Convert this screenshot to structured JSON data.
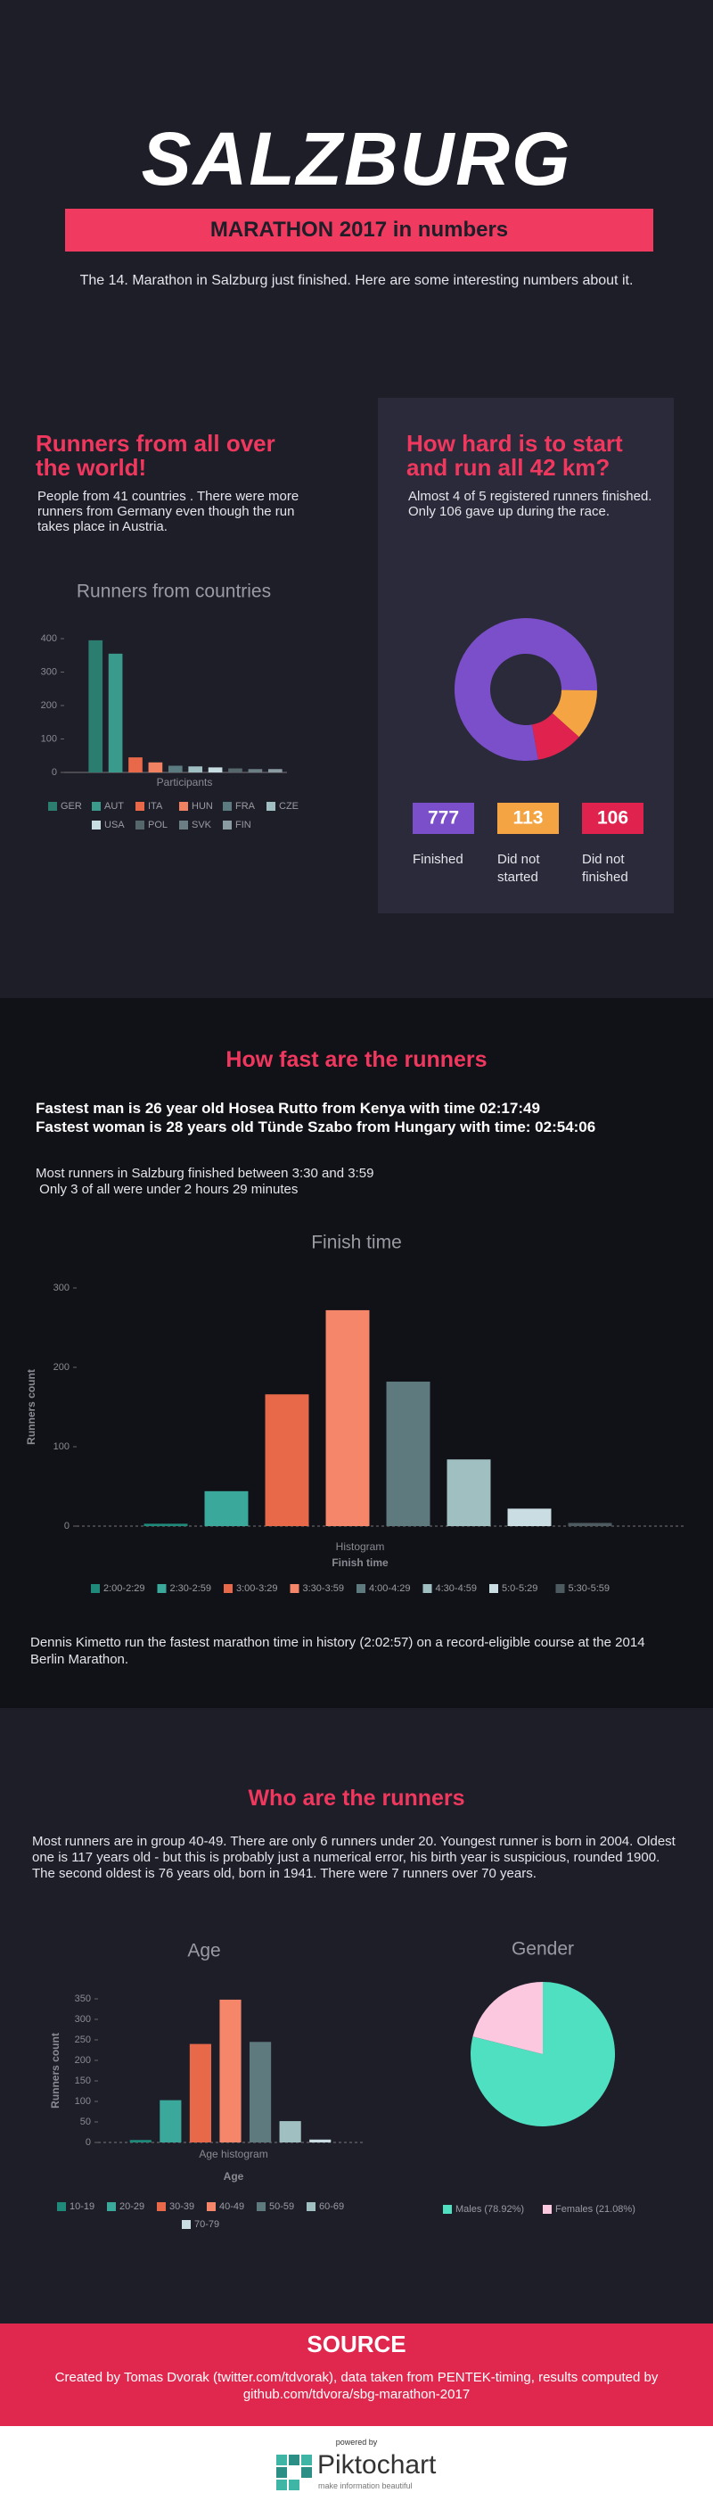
{
  "header": {
    "title": "SALZBURG",
    "banner": "MARATHON 2017 in numbers",
    "intro": "The 14. Marathon in Salzburg just finished. Here are some interesting numbers about it."
  },
  "countries": {
    "heading": "Runners from all over the world!",
    "text": "People from 41 countries . There were more runners from Germany even though the run takes place in Austria."
  },
  "difficulty": {
    "heading": "How hard is to start and run all 42 km?",
    "text": "Almost 4 of 5 registered runners finished.  Only 106 gave up during the race."
  },
  "speed": {
    "heading": "How fast are the runners",
    "fastest_man": "Fastest man is 26 year old Hosea Rutto from Kenya with time  02:17:49",
    "fastest_woman": "Fastest woman is 28 years old Tünde Szabo from Hungary with time: 02:54:06",
    "most": "Most runners in Salzburg finished between 3:30 and 3:59",
    "few": " Only 3 of all were under 2 hours 29 minutes",
    "record": "Dennis Kimetto run the fastest marathon time in history (2:02:57) on a record-eligible course at the 2014 Berlin Marathon."
  },
  "who": {
    "heading": "Who are the runners",
    "text": "Most runners are in group 40-49. There are only 6 runners under 20. Youngest runner is born in 2004. Oldest one is 117 years old - but this is probably just a numerical error, his birth year is suspicious, rounded 1900.  The second oldest is 76 years old, born in 1941. There were 7 runners over 70 years."
  },
  "source": {
    "title": "SOURCE",
    "text": "Created by Tomas Dvorak (twitter.com/tdvorak), data taken from PENTEK-timing, results computed by github.com/tdvora/sbg-marathon-2017"
  },
  "footer": {
    "powered_by": "powered by",
    "brand": "Piktochart",
    "tagline": "make information beautiful"
  },
  "chart_data": [
    {
      "type": "bar",
      "title": "Runners from countries",
      "xlabel": "Participants",
      "categories": [
        "GER",
        "AUT",
        "ITA",
        "HUN",
        "FRA",
        "CZE",
        "USA",
        "POL",
        "SVK",
        "FIN"
      ],
      "values": [
        395,
        355,
        45,
        30,
        20,
        18,
        15,
        12,
        10,
        10
      ],
      "colors": [
        "#2a7d6f",
        "#3a9a8c",
        "#e8694a",
        "#f08262",
        "#5b7b80",
        "#9fbfc2",
        "#c8dde2",
        "#56676c",
        "#6b7e84",
        "#8a9ca1"
      ],
      "ylim": [
        0,
        400
      ],
      "yticks": [
        0,
        100,
        200,
        300,
        400
      ]
    },
    {
      "type": "donut",
      "categories": [
        "Finished",
        "Did not started",
        "Did not finished"
      ],
      "values": [
        777,
        113,
        106
      ],
      "colors": [
        "#7b4fc9",
        "#f5a443",
        "#e0234e"
      ]
    },
    {
      "type": "bar",
      "title": "Finish time",
      "xlabel": "Histogram",
      "ylabel": "Runners count",
      "legend_title": "Finish time",
      "categories": [
        "2:00-2:29",
        "2:30-2:59",
        "3:00-3:29",
        "3:30-3:59",
        "4:00-4:29",
        "4:30-4:59",
        "5:0-5:29",
        "5:30-5:59"
      ],
      "values": [
        3,
        44,
        166,
        272,
        182,
        84,
        22,
        4
      ],
      "colors": [
        "#1f8a7a",
        "#3aa89a",
        "#e8694a",
        "#f5866a",
        "#5f7a7f",
        "#9fbfc0",
        "#c9dde2",
        "#4d5a5f"
      ],
      "ylim": [
        0,
        300
      ],
      "yticks": [
        0,
        100,
        200,
        300
      ]
    },
    {
      "type": "bar",
      "title": "Age",
      "xlabel": "Age histogram",
      "ylabel": "Runners count",
      "legend_title": "Age",
      "categories": [
        "10-19",
        "20-29",
        "30-39",
        "40-49",
        "50-59",
        "60-69",
        "70-79"
      ],
      "values": [
        6,
        103,
        240,
        348,
        245,
        52,
        7
      ],
      "colors": [
        "#1f8a7a",
        "#3aa89a",
        "#e8694a",
        "#f5866a",
        "#5f7a7f",
        "#9fbfc0",
        "#c9dde2"
      ],
      "ylim": [
        0,
        350
      ],
      "yticks": [
        0,
        50,
        100,
        150,
        200,
        250,
        300,
        350
      ]
    },
    {
      "type": "pie",
      "title": "Gender",
      "categories": [
        "Males (78.92%)",
        "Females (21.08%)"
      ],
      "values": [
        78.92,
        21.08
      ],
      "colors": [
        "#4fe0c2",
        "#fbc8e0"
      ]
    }
  ]
}
